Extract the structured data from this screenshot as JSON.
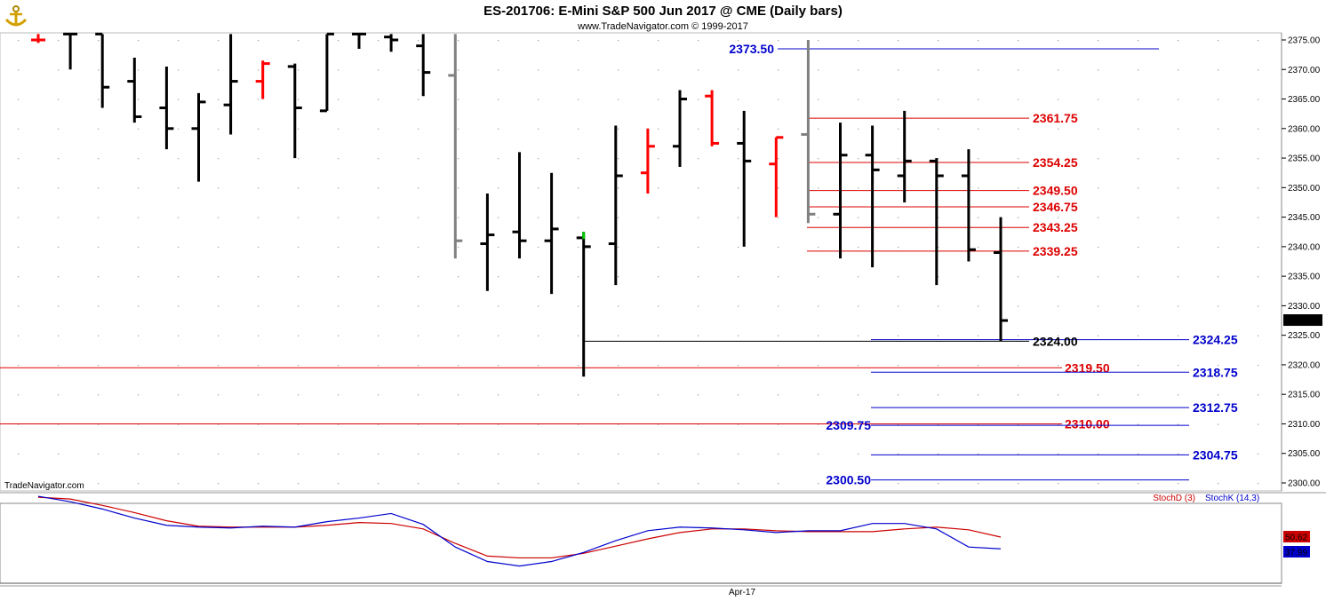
{
  "header": {
    "title": "ES-201706:  E-Mini S&P 500 Jun 2017 @ CME  (Daily bars)",
    "subtitle": "www.TradeNavigator.com © 1999-2017",
    "watermark": "TradeNavigator.com",
    "logo_icon": "anchor-logo-icon"
  },
  "colors": {
    "bar": "#000000",
    "bar_down": "#ff0000",
    "bar_gray": "#808080",
    "bar_green": "#00cc00",
    "level_red": "#dd0000",
    "level_blue": "#0000cc",
    "stoch_d": "#cc0000",
    "stoch_k": "#0000cc"
  },
  "chart_data": [
    {
      "type": "ohlc",
      "title": "ES-201706:  E-Mini S&P 500 Jun 2017 @ CME  (Daily bars)",
      "ylim": [
        2298,
        2376
      ],
      "yticks": [
        "2375.00",
        "2370.00",
        "2365.00",
        "2360.00",
        "2355.00",
        "2350.00",
        "2345.00",
        "2340.00",
        "2335.00",
        "2330.00",
        "2325.00",
        "2320.00",
        "2315.00",
        "2310.00",
        "2305.00",
        "2300.00"
      ],
      "xlabel_ticks": [
        "Apr-17"
      ],
      "last_price": "2327.50",
      "bars": [
        {
          "i": 0,
          "h": 2376,
          "l": 2374.5,
          "o": 2375,
          "c": 2375,
          "color": "red"
        },
        {
          "i": 1,
          "h": 2376,
          "l": 2370,
          "o": 2376,
          "c": 2376,
          "color": "black"
        },
        {
          "i": 2,
          "h": 2376,
          "l": 2363.5,
          "o": 2376,
          "c": 2367,
          "color": "black"
        },
        {
          "i": 3,
          "h": 2372,
          "l": 2361,
          "o": 2368,
          "c": 2362,
          "color": "black"
        },
        {
          "i": 4,
          "h": 2370.5,
          "l": 2356.5,
          "o": 2363.5,
          "c": 2360,
          "color": "black"
        },
        {
          "i": 5,
          "h": 2366,
          "l": 2351,
          "o": 2360,
          "c": 2364.5,
          "color": "black"
        },
        {
          "i": 6,
          "h": 2376,
          "l": 2359,
          "o": 2364,
          "c": 2368,
          "color": "black"
        },
        {
          "i": 7,
          "h": 2371.5,
          "l": 2365,
          "o": 2368,
          "c": 2371,
          "color": "red"
        },
        {
          "i": 8,
          "h": 2371,
          "l": 2355,
          "o": 2370.5,
          "c": 2363.5,
          "color": "black"
        },
        {
          "i": 9,
          "h": 2376,
          "l": 2363,
          "o": 2363,
          "c": 2376,
          "color": "black"
        },
        {
          "i": 10,
          "h": 2376,
          "l": 2373.5,
          "o": 2376,
          "c": 2376,
          "color": "black"
        },
        {
          "i": 11,
          "h": 2376,
          "l": 2373,
          "o": 2375.5,
          "c": 2375,
          "color": "black"
        },
        {
          "i": 12,
          "h": 2376,
          "l": 2365.5,
          "o": 2374,
          "c": 2369.5,
          "color": "black"
        },
        {
          "i": 13,
          "h": 2376,
          "l": 2338,
          "o": 2369,
          "c": 2341,
          "color": "gray"
        },
        {
          "i": 14,
          "h": 2349,
          "l": 2332.5,
          "o": 2340.5,
          "c": 2342,
          "color": "black"
        },
        {
          "i": 15,
          "h": 2356,
          "l": 2338,
          "o": 2342.5,
          "c": 2341,
          "color": "black"
        },
        {
          "i": 16,
          "h": 2352.5,
          "l": 2332,
          "o": 2341,
          "c": 2343,
          "color": "black"
        },
        {
          "i": 17,
          "h": 2342.5,
          "l": 2318,
          "o": 2341.5,
          "c": 2340,
          "color": "black",
          "high_tick": "green"
        },
        {
          "i": 18,
          "h": 2360.5,
          "l": 2333.5,
          "o": 2340.5,
          "c": 2352,
          "color": "black"
        },
        {
          "i": 19,
          "h": 2360,
          "l": 2349,
          "o": 2352.5,
          "c": 2357,
          "color": "red"
        },
        {
          "i": 20,
          "h": 2366.5,
          "l": 2353.5,
          "o": 2357,
          "c": 2365,
          "color": "black"
        },
        {
          "i": 21,
          "h": 2366.5,
          "l": 2357,
          "o": 2365.5,
          "c": 2357.5,
          "color": "red"
        },
        {
          "i": 22,
          "h": 2363,
          "l": 2340,
          "o": 2357.5,
          "c": 2354.5,
          "color": "black"
        },
        {
          "i": 23,
          "h": 2358.5,
          "l": 2345,
          "o": 2354,
          "c": 2358.5,
          "color": "red"
        },
        {
          "i": 24,
          "h": 2375,
          "l": 2344,
          "o": 2359,
          "c": 2345.5,
          "color": "gray"
        },
        {
          "i": 25,
          "h": 2361,
          "l": 2338,
          "o": 2345.5,
          "c": 2355.5,
          "color": "black"
        },
        {
          "i": 26,
          "h": 2360.5,
          "l": 2336.5,
          "o": 2355.5,
          "c": 2353,
          "color": "black"
        },
        {
          "i": 27,
          "h": 2363,
          "l": 2347.5,
          "o": 2352,
          "c": 2354.5,
          "color": "black"
        },
        {
          "i": 28,
          "h": 2355,
          "l": 2333.5,
          "o": 2354.5,
          "c": 2352,
          "color": "black"
        },
        {
          "i": 29,
          "h": 2356.5,
          "l": 2337.5,
          "o": 2352,
          "c": 2339.5,
          "color": "black"
        },
        {
          "i": 30,
          "h": 2345,
          "l": 2324,
          "o": 2339,
          "c": 2327.5,
          "color": "black"
        }
      ],
      "levels_red": [
        {
          "value": 2361.75,
          "label": "2361.75"
        },
        {
          "value": 2354.25,
          "label": "2354.25"
        },
        {
          "value": 2349.5,
          "label": "2349.50"
        },
        {
          "value": 2346.75,
          "label": "2346.75"
        },
        {
          "value": 2343.25,
          "label": "2343.25"
        },
        {
          "value": 2339.25,
          "label": "2339.25"
        },
        {
          "value": 2319.5,
          "label": "2319.50"
        },
        {
          "value": 2310.0,
          "label": "2310.00"
        }
      ],
      "levels_blue": [
        {
          "value": 2373.5,
          "label": "2373.50"
        },
        {
          "value": 2324.25,
          "label": "2324.25"
        },
        {
          "value": 2318.75,
          "label": "2318.75"
        },
        {
          "value": 2312.75,
          "label": "2312.75"
        },
        {
          "value": 2309.75,
          "label": "2309.75"
        },
        {
          "value": 2304.75,
          "label": "2304.75"
        },
        {
          "value": 2300.5,
          "label": "2300.50"
        }
      ],
      "level_black": {
        "value": 2324.0,
        "label": "2324.00"
      }
    },
    {
      "type": "line",
      "title": "",
      "ylim": [
        0,
        100
      ],
      "series": [
        {
          "name": "StochD (3)",
          "color": "#cc0000",
          "last": "50.62",
          "values": [
            95,
            93,
            86,
            78,
            69,
            63,
            62,
            62,
            62,
            64,
            67,
            66,
            60,
            44,
            30,
            28,
            28,
            33,
            41,
            49,
            56,
            60,
            60,
            58,
            57,
            57,
            57,
            60,
            62,
            59,
            51
          ]
        },
        {
          "name": "StochK (14,3)",
          "color": "#0000cc",
          "last": "37.99",
          "values": [
            96,
            90,
            82,
            72,
            64,
            62,
            61,
            63,
            62,
            68,
            72,
            77,
            65,
            40,
            24,
            19,
            24,
            34,
            47,
            58,
            62,
            61,
            59,
            56,
            58,
            58,
            66,
            66,
            60,
            40,
            38
          ]
        }
      ]
    }
  ]
}
